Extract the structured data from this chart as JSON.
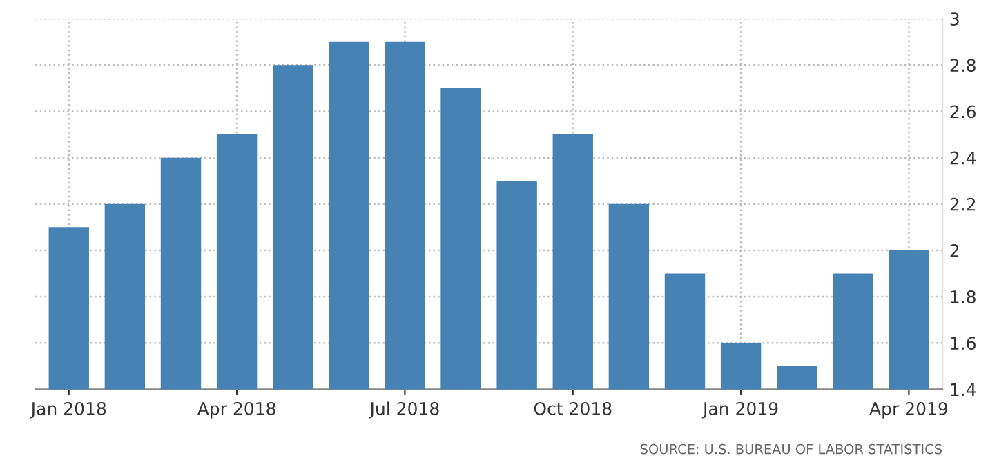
{
  "chart_data": {
    "type": "bar",
    "categories": [
      "Jan 2018",
      null,
      null,
      "Apr 2018",
      null,
      null,
      "Jul 2018",
      null,
      null,
      "Oct 2018",
      null,
      null,
      "Jan 2019",
      null,
      null,
      "Apr 2019"
    ],
    "values": [
      2.1,
      2.2,
      2.4,
      2.5,
      2.8,
      2.9,
      2.9,
      2.7,
      2.3,
      2.5,
      2.2,
      1.9,
      1.6,
      1.5,
      1.9,
      2.0
    ],
    "color": "#4682b4",
    "ylim": [
      1.4,
      3
    ],
    "yticks": [
      1.4,
      1.6,
      1.8,
      2,
      2.2,
      2.4,
      2.6,
      2.8,
      3
    ],
    "grid": true,
    "annotations": [
      "SOURCE: U.S. BUREAU OF LABOR STATISTICS"
    ]
  }
}
